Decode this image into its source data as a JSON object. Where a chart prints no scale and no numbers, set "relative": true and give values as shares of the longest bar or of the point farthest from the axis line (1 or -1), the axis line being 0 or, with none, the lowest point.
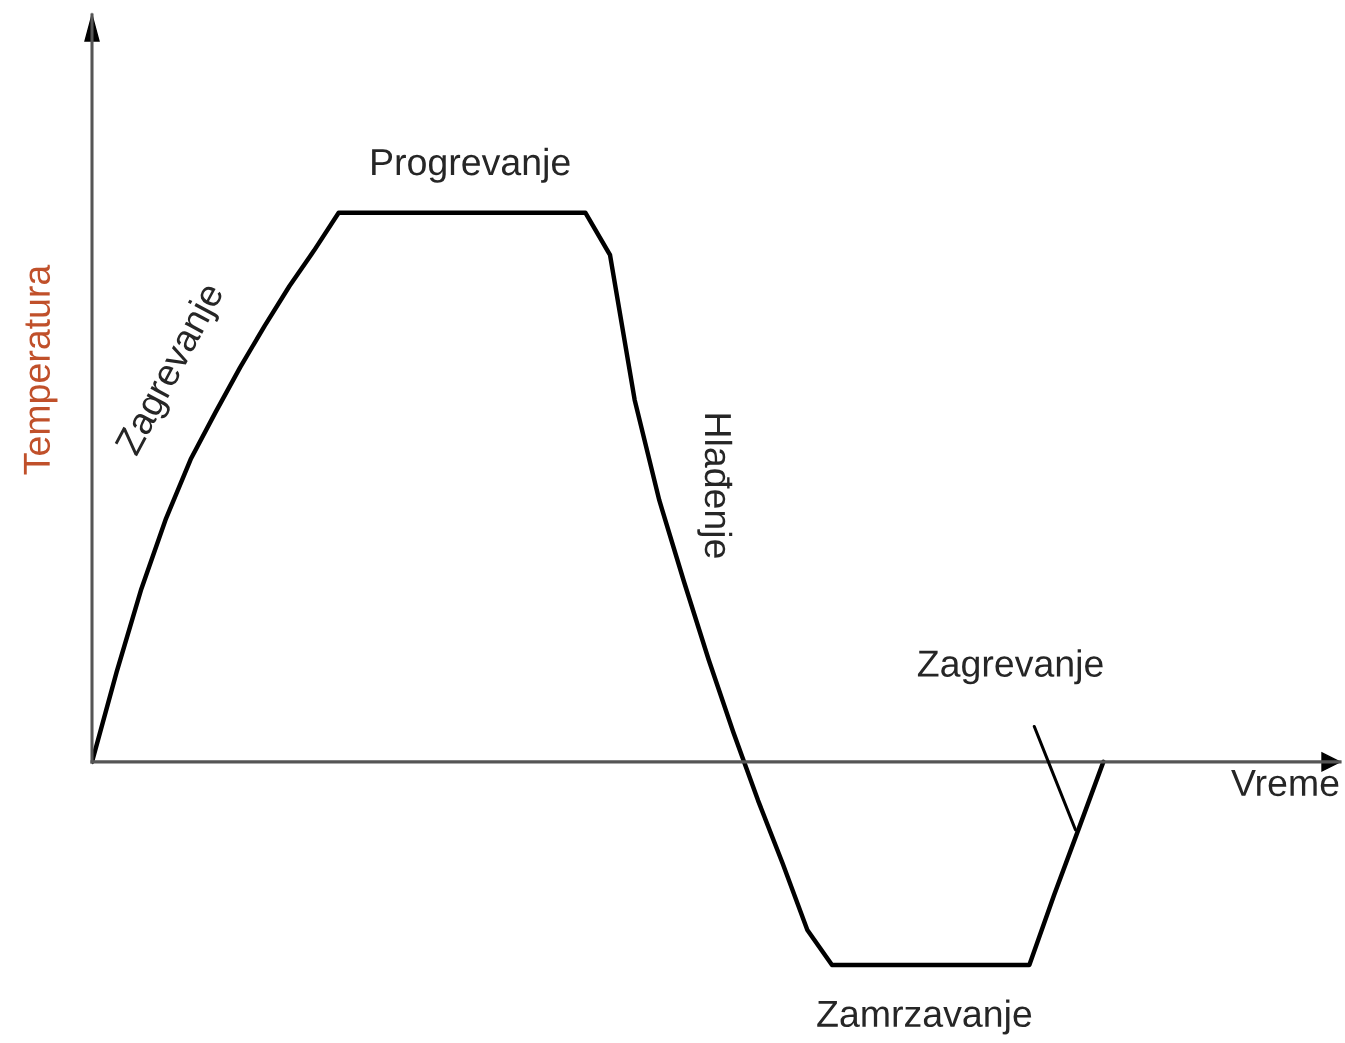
{
  "chart_data": {
    "type": "line",
    "relative": true,
    "xlabel": "Vreme",
    "ylabel": "Temperatura",
    "categories": [
      null,
      null,
      null,
      null,
      null,
      null,
      null,
      null,
      null,
      null,
      null,
      null,
      null,
      null,
      null,
      null,
      null,
      null,
      null,
      null,
      null,
      null,
      null,
      null,
      null,
      null,
      null,
      null,
      null,
      null,
      null,
      null,
      null,
      null,
      null,
      null,
      null,
      null,
      null,
      null,
      null,
      null
    ],
    "series": [
      {
        "color": "#000000",
        "values": [
          0,
          0.164,
          0.315,
          0.443,
          0.551,
          0.636,
          0.718,
          0.794,
          0.866,
          0.931,
          1,
          1,
          1,
          1,
          1,
          1,
          1,
          1,
          1,
          1,
          1,
          0.923,
          0.659,
          0.476,
          0.328,
          0.186,
          0.054,
          -0.07,
          -0.185,
          -0.306,
          -0.37,
          -0.37,
          -0.37,
          -0.37,
          -0.37,
          -0.37,
          -0.37,
          -0.37,
          -0.37,
          -0.243,
          -0.122,
          0
        ]
      }
    ],
    "annotations": [
      "Progrevanje",
      "Zagrevanje",
      "Hlađenje",
      "Zagrevanje",
      "Zamrzavanje"
    ],
    "legend": false,
    "marker": "none",
    "line_style": "solid"
  }
}
